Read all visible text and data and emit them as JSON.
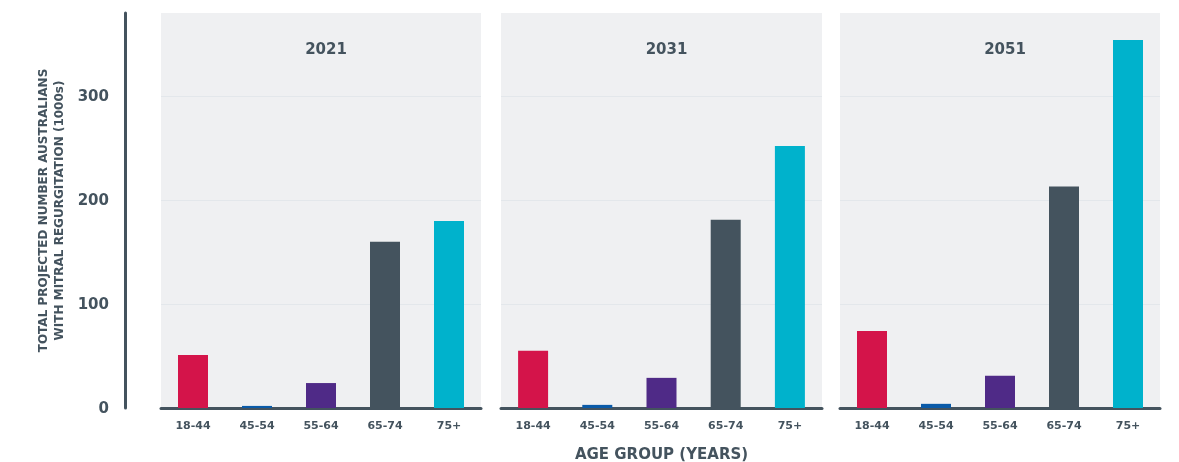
{
  "chart_data": [
    {
      "type": "bar",
      "title": "2021",
      "ylabel": "TOTAL PROJECTED NUMBER AUSTRALIANS\nWITH MITRAL REGURGITATION (1000s)",
      "categories": [
        "18-44",
        "45-54",
        "55-64",
        "65-74",
        "75+"
      ],
      "values": [
        51,
        2,
        24,
        160,
        180
      ],
      "colors": [
        "#d4144a",
        "#0a5aa8",
        "#4f2a87",
        "#44535e",
        "#00b2cc"
      ],
      "ylim": [
        0,
        380
      ],
      "yticks": [
        0,
        100,
        200,
        300
      ],
      "grid": "y"
    },
    {
      "type": "bar",
      "title": "2031",
      "xlabel": "AGE GROUP (YEARS)",
      "categories": [
        "18-44",
        "45-54",
        "55-64",
        "65-74",
        "75+"
      ],
      "values": [
        55,
        3,
        29,
        181,
        252
      ],
      "colors": [
        "#d4144a",
        "#0a5aa8",
        "#4f2a87",
        "#44535e",
        "#00b2cc"
      ],
      "ylim": [
        0,
        380
      ],
      "yticks": [
        0,
        100,
        200,
        300
      ],
      "grid": "y",
      "tick_labels": "x"
    },
    {
      "type": "bar",
      "title": "2051",
      "categories": [
        "18-44",
        "45-54",
        "55-64",
        "65-74",
        "75+"
      ],
      "values": [
        74,
        4,
        31,
        213,
        354
      ],
      "colors": [
        "#d4144a",
        "#0a5aa8",
        "#4f2a87",
        "#44535e",
        "#00b2cc"
      ],
      "ylim": [
        0,
        380
      ],
      "yticks": [
        0,
        100,
        200,
        300
      ],
      "grid": "y",
      "tick_labels": "x"
    }
  ]
}
